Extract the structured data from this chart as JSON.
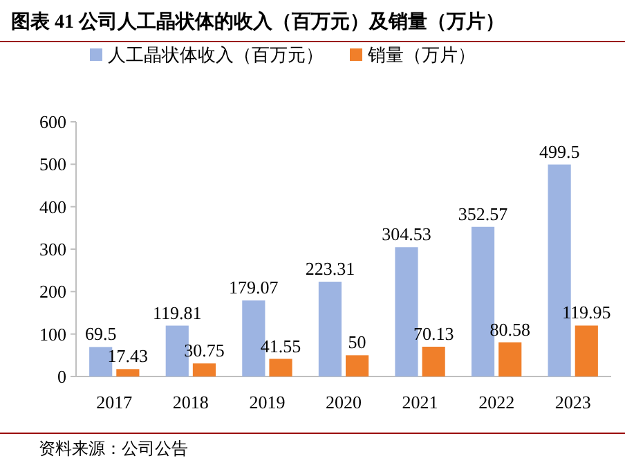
{
  "chart_data": {
    "type": "bar",
    "title": "**图表 41  公司人工晶状体的收入（百万元）及销量（万片）**",
    "categories": [
      "2017",
      "2018",
      "2019",
      "2020",
      "2021",
      "2022",
      "2023"
    ],
    "series": [
      {
        "name": "人工晶状体收入（百万元）",
        "color": "#9db4e2",
        "values": [
          69.5,
          119.81,
          179.07,
          223.31,
          304.53,
          352.57,
          499.5
        ]
      },
      {
        "name": "销量（万片）",
        "color": "#f07f2a",
        "values": [
          17.43,
          30.75,
          41.55,
          50,
          70.13,
          80.58,
          119.95
        ]
      }
    ],
    "ylim": [
      0,
      600
    ],
    "yticks": [
      0,
      100,
      200,
      300,
      400,
      500,
      600
    ],
    "data_labels": true,
    "legend": "top left",
    "annotations": [
      "资料来源：公司公告"
    ]
  }
}
